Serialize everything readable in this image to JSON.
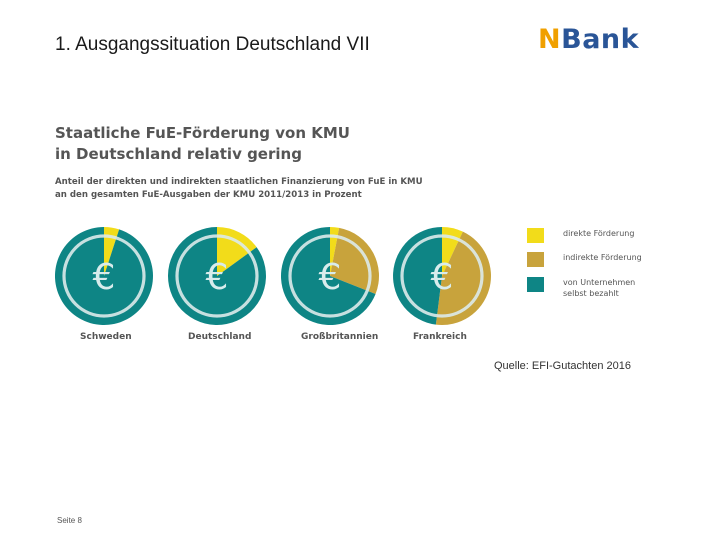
{
  "slide": {
    "title": "1. Ausgangssituation Deutschland VII",
    "logo": {
      "part1": "N",
      "part2": "Bank"
    },
    "source": "Quelle: EFI-Gutachten 2016",
    "page": "Seite 8"
  },
  "chart_data": {
    "type": "pie",
    "title": [
      "Staatliche FuE-Förderung von KMU",
      "in Deutschland relativ gering"
    ],
    "subtitle": [
      "Anteil der direkten und indirekten staatlichen Finanzierung von FuE in KMU",
      "an den gesamten FuE-Ausgaben der KMU 2011/2013 in Prozent"
    ],
    "center_symbol": "€",
    "series_colors": {
      "direkt": "#f2dc1a",
      "indirekt": "#c8a33c",
      "selbst": "#0e8585"
    },
    "legend": [
      {
        "key": "direkt",
        "lines": [
          "direkte Förderung"
        ]
      },
      {
        "key": "indirekt",
        "lines": [
          "indirekte Förderung"
        ]
      },
      {
        "key": "selbst",
        "lines": [
          "von Unternehmen",
          "selbst bezahlt"
        ]
      }
    ],
    "countries": [
      {
        "name": "Schweden",
        "direkt": 5,
        "indirekt": 0,
        "selbst": 95
      },
      {
        "name": "Deutschland",
        "direkt": 15,
        "indirekt": 0,
        "selbst": 85
      },
      {
        "name": "Großbritannien",
        "direkt": 3,
        "indirekt": 28,
        "selbst": 69
      },
      {
        "name": "Frankreich",
        "direkt": 7,
        "indirekt": 45,
        "selbst": 48
      }
    ]
  }
}
